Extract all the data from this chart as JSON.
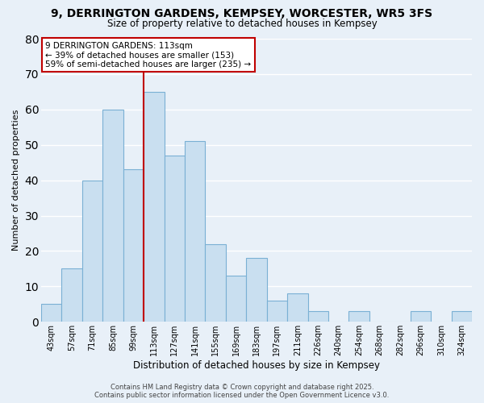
{
  "title": "9, DERRINGTON GARDENS, KEMPSEY, WORCESTER, WR5 3FS",
  "subtitle": "Size of property relative to detached houses in Kempsey",
  "xlabel": "Distribution of detached houses by size in Kempsey",
  "ylabel": "Number of detached properties",
  "bin_labels": [
    "43sqm",
    "57sqm",
    "71sqm",
    "85sqm",
    "99sqm",
    "113sqm",
    "127sqm",
    "141sqm",
    "155sqm",
    "169sqm",
    "183sqm",
    "197sqm",
    "211sqm",
    "226sqm",
    "240sqm",
    "254sqm",
    "268sqm",
    "282sqm",
    "296sqm",
    "310sqm",
    "324sqm"
  ],
  "bar_heights": [
    5,
    15,
    40,
    60,
    43,
    65,
    47,
    51,
    22,
    13,
    18,
    6,
    8,
    3,
    0,
    3,
    0,
    0,
    3,
    0,
    3
  ],
  "bar_color": "#c9dff0",
  "bar_edge_color": "#7ab0d4",
  "highlight_index": 5,
  "highlight_line_color": "#c00000",
  "ylim": [
    0,
    80
  ],
  "yticks": [
    0,
    10,
    20,
    30,
    40,
    50,
    60,
    70,
    80
  ],
  "annotation_title": "9 DERRINGTON GARDENS: 113sqm",
  "annotation_line1": "← 39% of detached houses are smaller (153)",
  "annotation_line2": "59% of semi-detached houses are larger (235) →",
  "annotation_box_color": "#ffffff",
  "annotation_box_edge_color": "#c00000",
  "footer1": "Contains HM Land Registry data © Crown copyright and database right 2025.",
  "footer2": "Contains public sector information licensed under the Open Government Licence v3.0.",
  "background_color": "#e8f0f8",
  "grid_color": "#ffffff"
}
